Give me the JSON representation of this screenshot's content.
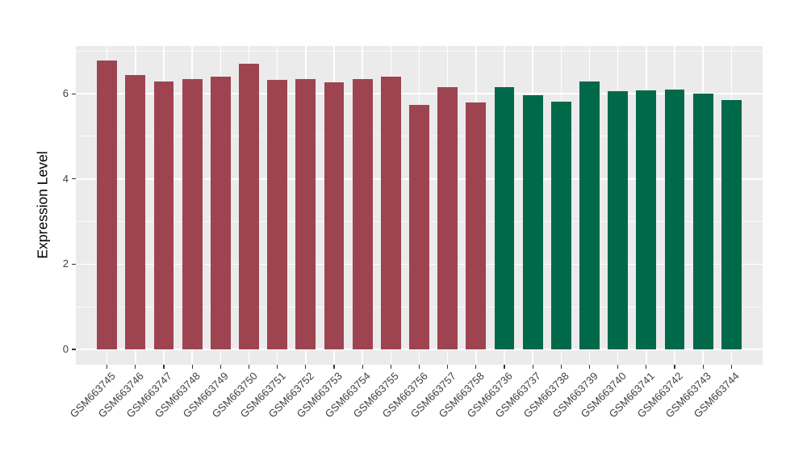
{
  "figure": {
    "background_color": "#FFFFFF",
    "panel_background_color": "#EBEBEB",
    "gridline_color": "#FFFFFF",
    "tick_color": "#333333",
    "axis_text_color": "#404040",
    "axis_title_color": "#000000"
  },
  "chart_data": {
    "type": "bar",
    "title": "",
    "xlabel": "",
    "ylabel": "Expression Level",
    "ylim": [
      -0.36,
      7.12
    ],
    "yticks": [
      0,
      2,
      4,
      6
    ],
    "yticks_minor": [
      1,
      3,
      5,
      7
    ],
    "grid": "horizontal major+minor white lines, vertical major white lines at category centers",
    "legend_position": "none",
    "categories": [
      "GSM663745",
      "GSM663746",
      "GSM663747",
      "GSM663748",
      "GSM663749",
      "GSM663750",
      "GSM663751",
      "GSM663752",
      "GSM663753",
      "GSM663754",
      "GSM663755",
      "GSM663756",
      "GSM663757",
      "GSM663758",
      "GSM663736",
      "GSM663737",
      "GSM663738",
      "GSM663739",
      "GSM663740",
      "GSM663741",
      "GSM663742",
      "GSM663743",
      "GSM663744"
    ],
    "values": [
      6.78,
      6.44,
      6.28,
      6.34,
      6.4,
      6.7,
      6.32,
      6.34,
      6.27,
      6.35,
      6.41,
      5.73,
      6.15,
      5.79,
      6.15,
      5.97,
      5.82,
      6.28,
      6.06,
      6.08,
      6.1,
      6.01,
      5.86
    ],
    "bar_groups": [
      1,
      1,
      1,
      1,
      1,
      1,
      1,
      1,
      1,
      1,
      1,
      1,
      1,
      1,
      2,
      2,
      2,
      2,
      2,
      2,
      2,
      2,
      2
    ],
    "group_colors": {
      "1": "#9E4451",
      "2": "#00694A"
    }
  }
}
